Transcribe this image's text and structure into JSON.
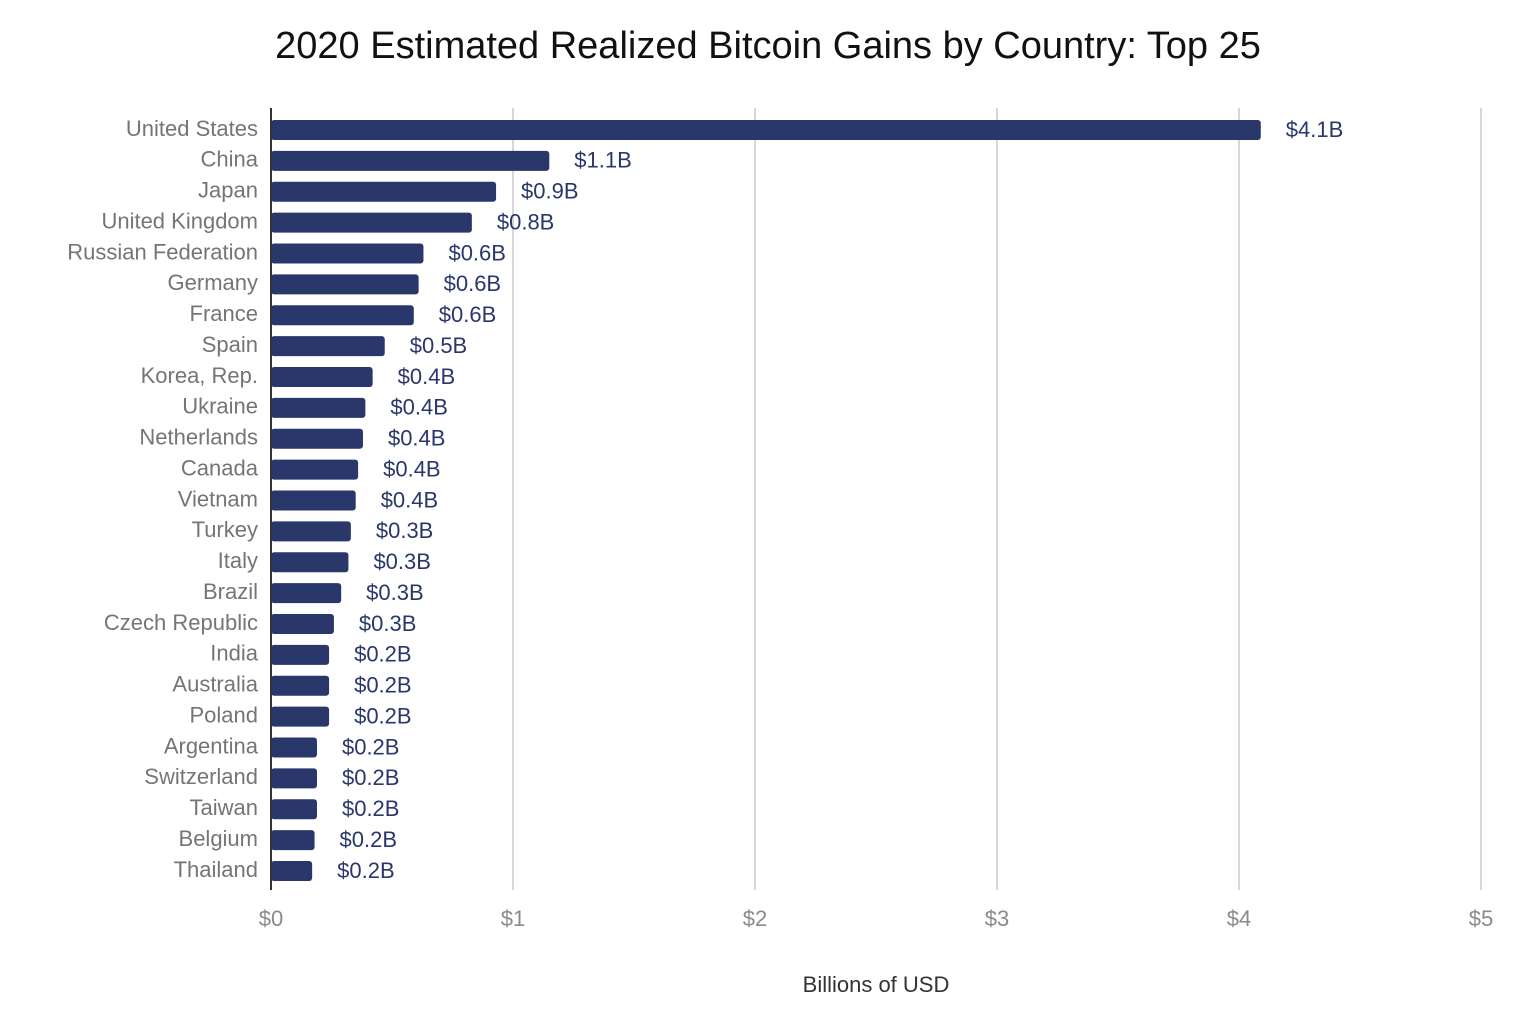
{
  "chart_data": {
    "type": "bar",
    "orientation": "horizontal",
    "title": "2020 Estimated Realized Bitcoin Gains by Country: Top 25",
    "x_label": "Billions of USD",
    "categories": [
      "United States",
      "China",
      "Japan",
      "United Kingdom",
      "Russian Federation",
      "Germany",
      "France",
      "Spain",
      "Korea, Rep.",
      "Ukraine",
      "Netherlands",
      "Canada",
      "Vietnam",
      "Turkey",
      "Italy",
      "Brazil",
      "Czech Republic",
      "India",
      "Australia",
      "Poland",
      "Argentina",
      "Switzerland",
      "Taiwan",
      "Belgium",
      "Thailand"
    ],
    "values": [
      4.09,
      1.15,
      0.93,
      0.83,
      0.63,
      0.61,
      0.59,
      0.47,
      0.42,
      0.39,
      0.38,
      0.36,
      0.35,
      0.33,
      0.32,
      0.29,
      0.26,
      0.24,
      0.24,
      0.24,
      0.19,
      0.19,
      0.19,
      0.18,
      0.17
    ],
    "value_labels": [
      "$4.1B",
      "$1.1B",
      "$0.9B",
      "$0.8B",
      "$0.6B",
      "$0.6B",
      "$0.6B",
      "$0.5B",
      "$0.4B",
      "$0.4B",
      "$0.4B",
      "$0.4B",
      "$0.4B",
      "$0.3B",
      "$0.3B",
      "$0.3B",
      "$0.3B",
      "$0.2B",
      "$0.2B",
      "$0.2B",
      "$0.2B",
      "$0.2B",
      "$0.2B",
      "$0.2B",
      "$0.2B"
    ],
    "color": "#29376b",
    "xlim": [
      0,
      5
    ],
    "xticks": [
      {
        "value": 0,
        "label": "$0"
      },
      {
        "value": 1,
        "label": "$1"
      },
      {
        "value": 2,
        "label": "$2"
      },
      {
        "value": 3,
        "label": "$3"
      },
      {
        "value": 4,
        "label": "$4"
      },
      {
        "value": 5,
        "label": "$5"
      }
    ],
    "grid": true
  }
}
